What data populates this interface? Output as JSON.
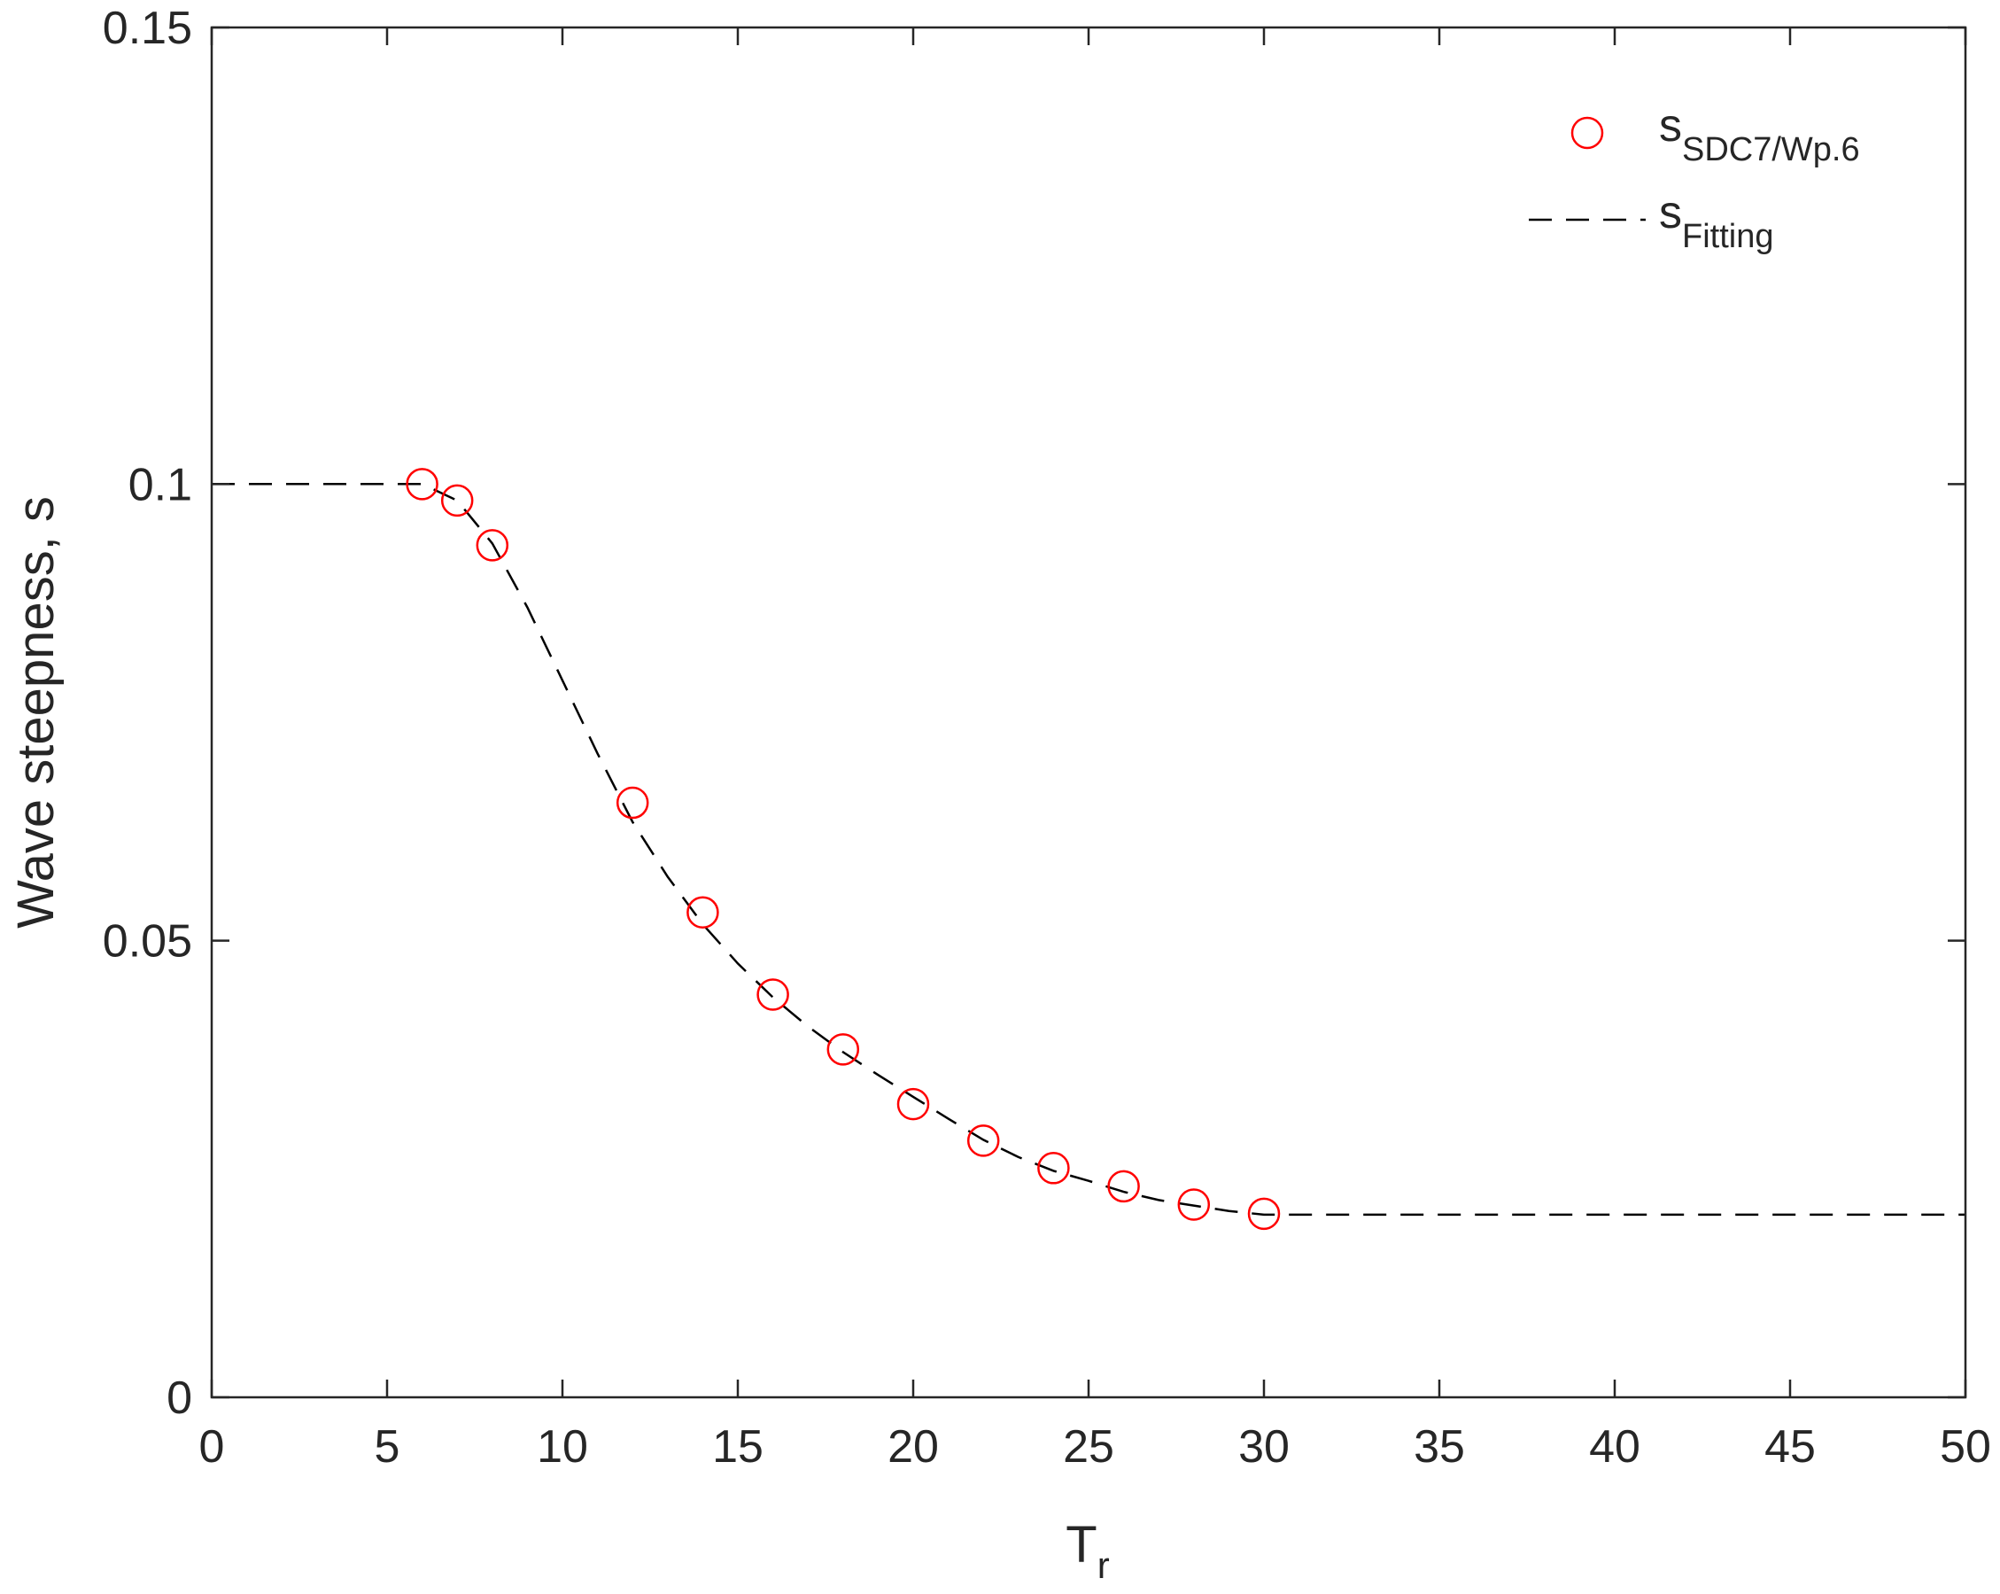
{
  "chart_data": {
    "type": "scatter",
    "xlabel": "T",
    "xlabel_subscript": "r",
    "ylabel": "Wave steepness, s",
    "xlim": [
      0,
      50
    ],
    "ylim": [
      0,
      0.15
    ],
    "x_ticks": [
      0,
      5,
      10,
      15,
      20,
      25,
      30,
      35,
      40,
      45,
      50
    ],
    "y_ticks": [
      0,
      0.05,
      0.1,
      0.15
    ],
    "x_tick_labels": [
      "0",
      "5",
      "10",
      "15",
      "20",
      "25",
      "30",
      "35",
      "40",
      "45",
      "50"
    ],
    "y_tick_labels": [
      "0",
      "0.05",
      "0.1",
      "0.15"
    ],
    "grid": false,
    "legend_position": "top-right",
    "series": [
      {
        "name": "s",
        "name_subscript": "SDC7/Wp.6",
        "kind": "markers",
        "marker": "open-circle",
        "color": "#ff0000",
        "x": [
          6,
          7,
          8,
          12,
          14,
          16,
          18,
          20,
          22,
          24,
          26,
          28,
          30
        ],
        "y": [
          0.1,
          0.0982,
          0.0933,
          0.0651,
          0.0531,
          0.0441,
          0.0381,
          0.0321,
          0.0281,
          0.0251,
          0.0231,
          0.0211,
          0.0201
        ]
      },
      {
        "name": "s",
        "name_subscript": "Fitting",
        "kind": "line",
        "line_style": "dashed",
        "color": "#000000",
        "x": [
          0,
          6,
          7,
          8,
          9,
          10,
          11,
          12,
          13,
          14,
          15,
          16,
          17,
          18,
          19,
          20,
          21,
          22,
          23,
          24,
          25,
          26,
          27,
          28,
          29,
          30,
          35,
          40,
          45,
          50
        ],
        "y": [
          0.1,
          0.1,
          0.0982,
          0.0935,
          0.0865,
          0.0785,
          0.0705,
          0.063,
          0.057,
          0.0518,
          0.0475,
          0.0438,
          0.0406,
          0.0378,
          0.0353,
          0.0329,
          0.0305,
          0.0282,
          0.0263,
          0.0248,
          0.0237,
          0.0225,
          0.0216,
          0.021,
          0.0204,
          0.02,
          0.02,
          0.02,
          0.02,
          0.02
        ]
      }
    ]
  }
}
